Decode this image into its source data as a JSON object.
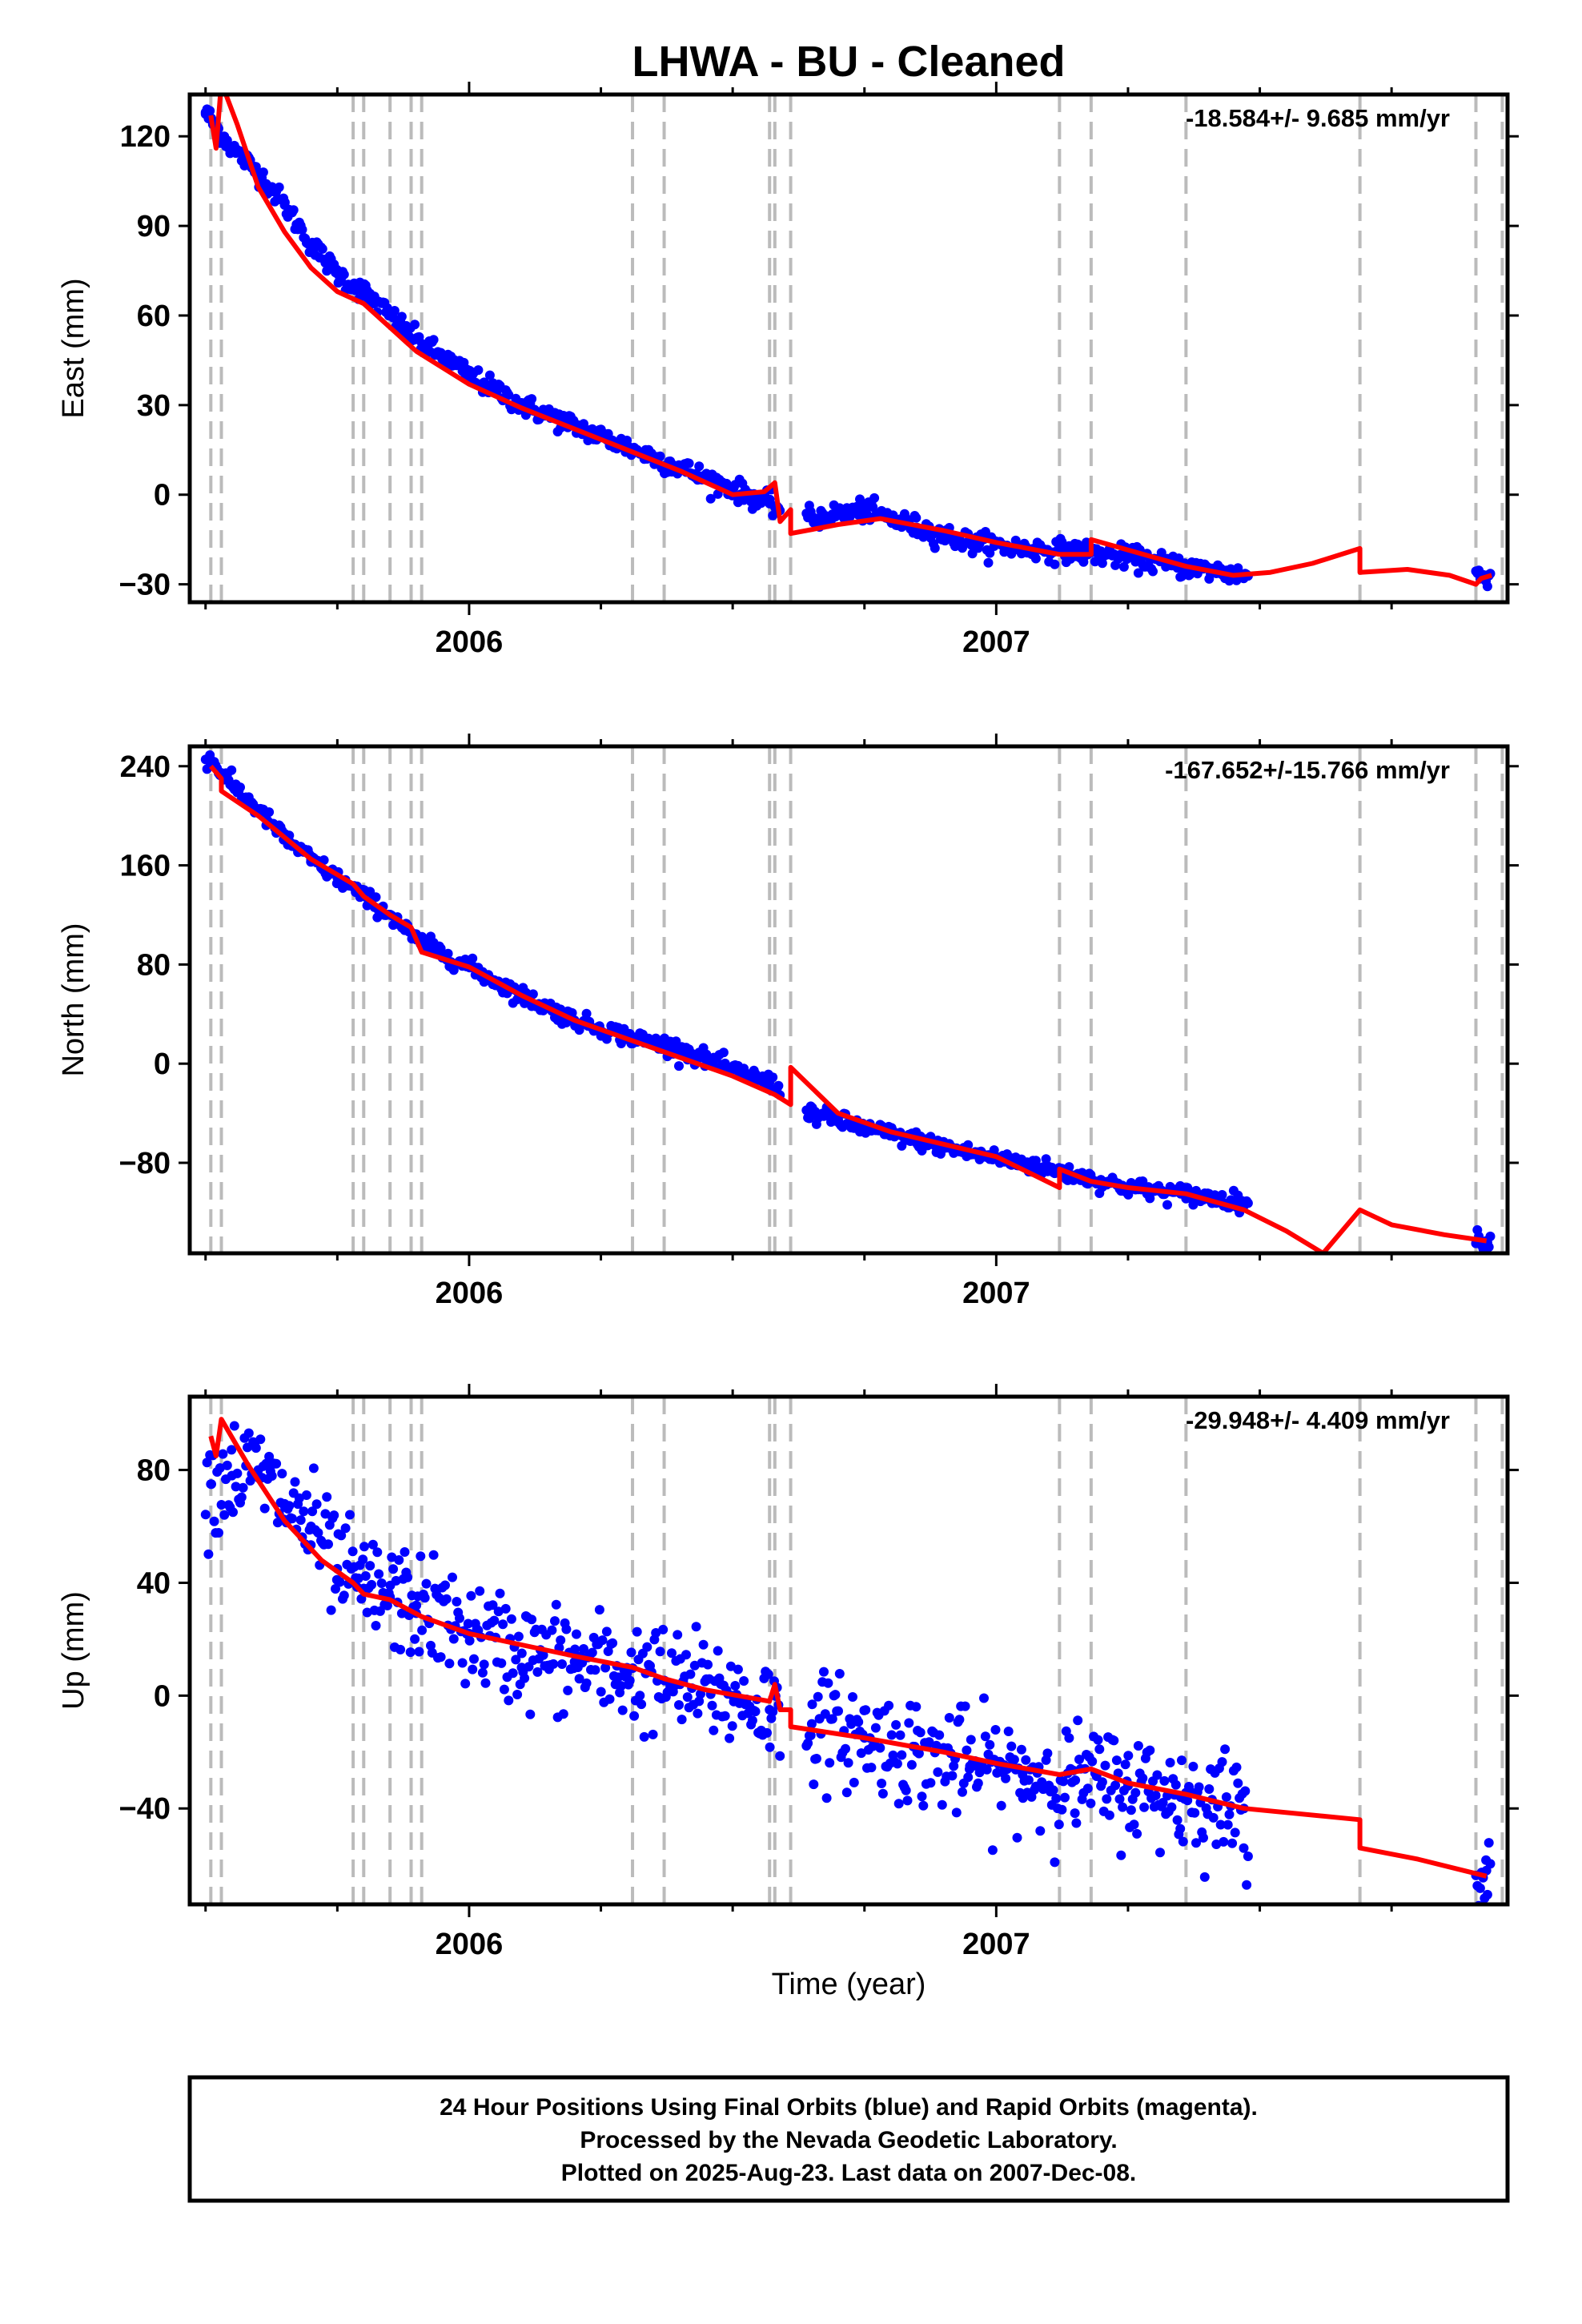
{
  "title": "LHWA  - BU - Cleaned",
  "xlabel": "Time (year)",
  "footer": {
    "line1": "24 Hour Positions Using Final Orbits (blue) and Rapid Orbits (magenta).",
    "line2": "Processed by the Nevada Geodetic Laboratory.",
    "line3": "Plotted on 2025-Aug-23. Last data on 2007-Dec-08."
  },
  "colors": {
    "points": "#0000ff",
    "model": "#ff0000",
    "steps": "#bbbbbb"
  },
  "chart_data": [
    {
      "type": "scatter",
      "ylabel": "East (mm)",
      "rate_label": "-18.584+/- 9.685 mm/yr",
      "xlim": [
        2005.47,
        2007.97
      ],
      "ylim": [
        -36,
        134
      ],
      "x_ticks": [
        2006,
        2007
      ],
      "y_ticks": [
        -30,
        0,
        30,
        60,
        90,
        120
      ],
      "step_epochs": [
        2005.51,
        2005.53,
        2005.78,
        2005.8,
        2005.85,
        2005.89,
        2005.91,
        2006.31,
        2006.37,
        2006.57,
        2006.58,
        2006.61,
        2007.12,
        2007.18,
        2007.36,
        2007.69,
        2007.91,
        2007.96
      ],
      "observed": [
        {
          "x": 2005.5,
          "y": 128
        },
        {
          "x": 2005.55,
          "y": 116
        },
        {
          "x": 2005.6,
          "y": 108
        },
        {
          "x": 2005.65,
          "y": 97
        },
        {
          "x": 2005.7,
          "y": 84
        },
        {
          "x": 2005.75,
          "y": 74
        },
        {
          "x": 2005.8,
          "y": 68
        },
        {
          "x": 2005.85,
          "y": 60
        },
        {
          "x": 2005.9,
          "y": 52
        },
        {
          "x": 2006.0,
          "y": 40
        },
        {
          "x": 2006.1,
          "y": 30
        },
        {
          "x": 2006.2,
          "y": 23
        },
        {
          "x": 2006.3,
          "y": 16
        },
        {
          "x": 2006.4,
          "y": 9
        },
        {
          "x": 2006.5,
          "y": 2
        },
        {
          "x": 2006.57,
          "y": -3
        },
        {
          "x": 2006.65,
          "y": -8
        },
        {
          "x": 2006.75,
          "y": -5
        },
        {
          "x": 2006.85,
          "y": -11
        },
        {
          "x": 2006.95,
          "y": -16
        },
        {
          "x": 2007.05,
          "y": -18
        },
        {
          "x": 2007.15,
          "y": -19
        },
        {
          "x": 2007.25,
          "y": -21
        },
        {
          "x": 2007.35,
          "y": -24
        },
        {
          "x": 2007.47,
          "y": -27
        },
        {
          "x": 2007.93,
          "y": -27
        }
      ],
      "model": [
        {
          "x": 2005.51,
          "y": 127
        },
        {
          "x": 2005.52,
          "y": 116
        },
        {
          "x": 2005.53,
          "y": 138
        },
        {
          "x": 2005.56,
          "y": 124
        },
        {
          "x": 2005.6,
          "y": 103
        },
        {
          "x": 2005.65,
          "y": 88
        },
        {
          "x": 2005.7,
          "y": 76
        },
        {
          "x": 2005.75,
          "y": 68
        },
        {
          "x": 2005.8,
          "y": 64
        },
        {
          "x": 2005.85,
          "y": 56
        },
        {
          "x": 2005.9,
          "y": 48
        },
        {
          "x": 2006.0,
          "y": 37
        },
        {
          "x": 2006.1,
          "y": 29
        },
        {
          "x": 2006.2,
          "y": 22
        },
        {
          "x": 2006.3,
          "y": 15
        },
        {
          "x": 2006.4,
          "y": 8
        },
        {
          "x": 2006.5,
          "y": 0
        },
        {
          "x": 2006.56,
          "y": 1
        },
        {
          "x": 2006.58,
          "y": 4
        },
        {
          "x": 2006.59,
          "y": -9
        },
        {
          "x": 2006.61,
          "y": -5
        },
        {
          "x": 2006.61,
          "y": -13
        },
        {
          "x": 2006.7,
          "y": -10
        },
        {
          "x": 2006.78,
          "y": -8
        },
        {
          "x": 2006.9,
          "y": -12
        },
        {
          "x": 2007.0,
          "y": -16
        },
        {
          "x": 2007.12,
          "y": -20
        },
        {
          "x": 2007.18,
          "y": -20
        },
        {
          "x": 2007.18,
          "y": -15
        },
        {
          "x": 2007.3,
          "y": -21
        },
        {
          "x": 2007.36,
          "y": -24
        },
        {
          "x": 2007.45,
          "y": -27
        },
        {
          "x": 2007.52,
          "y": -26
        },
        {
          "x": 2007.6,
          "y": -23
        },
        {
          "x": 2007.69,
          "y": -18
        },
        {
          "x": 2007.69,
          "y": -26
        },
        {
          "x": 2007.78,
          "y": -25
        },
        {
          "x": 2007.86,
          "y": -27
        },
        {
          "x": 2007.91,
          "y": -30
        },
        {
          "x": 2007.92,
          "y": -28
        },
        {
          "x": 2007.94,
          "y": -27
        }
      ]
    },
    {
      "type": "scatter",
      "ylabel": "North (mm)",
      "rate_label": "-167.652+/-15.766 mm/yr",
      "xlim": [
        2005.47,
        2007.97
      ],
      "ylim": [
        -153,
        256
      ],
      "x_ticks": [
        2006,
        2007
      ],
      "y_ticks": [
        -80,
        0,
        80,
        160,
        240
      ],
      "step_epochs": [
        2005.51,
        2005.53,
        2005.78,
        2005.8,
        2005.85,
        2005.89,
        2005.91,
        2006.31,
        2006.37,
        2006.57,
        2006.58,
        2006.61,
        2007.12,
        2007.18,
        2007.36,
        2007.69,
        2007.91,
        2007.96
      ],
      "observed": [
        {
          "x": 2005.51,
          "y": 245
        },
        {
          "x": 2005.55,
          "y": 225
        },
        {
          "x": 2005.6,
          "y": 205
        },
        {
          "x": 2005.65,
          "y": 182
        },
        {
          "x": 2005.7,
          "y": 165
        },
        {
          "x": 2005.75,
          "y": 150
        },
        {
          "x": 2005.8,
          "y": 135
        },
        {
          "x": 2005.85,
          "y": 120
        },
        {
          "x": 2005.9,
          "y": 100
        },
        {
          "x": 2006.0,
          "y": 78
        },
        {
          "x": 2006.1,
          "y": 55
        },
        {
          "x": 2006.2,
          "y": 35
        },
        {
          "x": 2006.3,
          "y": 22
        },
        {
          "x": 2006.4,
          "y": 12
        },
        {
          "x": 2006.5,
          "y": -5
        },
        {
          "x": 2006.57,
          "y": -15
        },
        {
          "x": 2006.65,
          "y": -40
        },
        {
          "x": 2006.75,
          "y": -52
        },
        {
          "x": 2006.85,
          "y": -62
        },
        {
          "x": 2006.95,
          "y": -72
        },
        {
          "x": 2007.05,
          "y": -80
        },
        {
          "x": 2007.15,
          "y": -90
        },
        {
          "x": 2007.25,
          "y": -100
        },
        {
          "x": 2007.35,
          "y": -105
        },
        {
          "x": 2007.47,
          "y": -112
        },
        {
          "x": 2007.93,
          "y": -143
        }
      ],
      "model": [
        {
          "x": 2005.51,
          "y": 240
        },
        {
          "x": 2005.53,
          "y": 230
        },
        {
          "x": 2005.53,
          "y": 220
        },
        {
          "x": 2005.6,
          "y": 200
        },
        {
          "x": 2005.7,
          "y": 165
        },
        {
          "x": 2005.78,
          "y": 145
        },
        {
          "x": 2005.8,
          "y": 135
        },
        {
          "x": 2005.85,
          "y": 120
        },
        {
          "x": 2005.89,
          "y": 110
        },
        {
          "x": 2005.91,
          "y": 90
        },
        {
          "x": 2006.0,
          "y": 78
        },
        {
          "x": 2006.1,
          "y": 55
        },
        {
          "x": 2006.2,
          "y": 35
        },
        {
          "x": 2006.3,
          "y": 20
        },
        {
          "x": 2006.4,
          "y": 5
        },
        {
          "x": 2006.5,
          "y": -10
        },
        {
          "x": 2006.58,
          "y": -25
        },
        {
          "x": 2006.61,
          "y": -33
        },
        {
          "x": 2006.61,
          "y": -3
        },
        {
          "x": 2006.7,
          "y": -40
        },
        {
          "x": 2006.8,
          "y": -55
        },
        {
          "x": 2006.9,
          "y": -65
        },
        {
          "x": 2007.0,
          "y": -75
        },
        {
          "x": 2007.12,
          "y": -100
        },
        {
          "x": 2007.12,
          "y": -85
        },
        {
          "x": 2007.18,
          "y": -95
        },
        {
          "x": 2007.25,
          "y": -100
        },
        {
          "x": 2007.36,
          "y": -105
        },
        {
          "x": 2007.47,
          "y": -118
        },
        {
          "x": 2007.55,
          "y": -135
        },
        {
          "x": 2007.62,
          "y": -153
        },
        {
          "x": 2007.69,
          "y": -118
        },
        {
          "x": 2007.75,
          "y": -130
        },
        {
          "x": 2007.85,
          "y": -138
        },
        {
          "x": 2007.93,
          "y": -143
        }
      ]
    },
    {
      "type": "scatter",
      "ylabel": "Up (mm)",
      "rate_label": "-29.948+/- 4.409 mm/yr",
      "xlim": [
        2005.47,
        2007.97
      ],
      "ylim": [
        -74,
        106
      ],
      "x_ticks": [
        2006,
        2007
      ],
      "y_ticks": [
        -40,
        0,
        40,
        80
      ],
      "step_epochs": [
        2005.51,
        2005.53,
        2005.78,
        2005.8,
        2005.85,
        2005.89,
        2005.91,
        2006.31,
        2006.37,
        2006.57,
        2006.58,
        2006.61,
        2007.12,
        2007.18,
        2007.36,
        2007.69,
        2007.91,
        2007.96
      ],
      "observed": [
        {
          "x": 2005.51,
          "y": 75
        },
        {
          "x": 2005.55,
          "y": 78
        },
        {
          "x": 2005.6,
          "y": 80
        },
        {
          "x": 2005.65,
          "y": 68
        },
        {
          "x": 2005.7,
          "y": 60
        },
        {
          "x": 2005.75,
          "y": 45
        },
        {
          "x": 2005.8,
          "y": 38
        },
        {
          "x": 2005.85,
          "y": 35
        },
        {
          "x": 2005.9,
          "y": 32
        },
        {
          "x": 2006.0,
          "y": 22
        },
        {
          "x": 2006.1,
          "y": 15
        },
        {
          "x": 2006.2,
          "y": 12
        },
        {
          "x": 2006.3,
          "y": 8
        },
        {
          "x": 2006.4,
          "y": 4
        },
        {
          "x": 2006.5,
          "y": 0
        },
        {
          "x": 2006.57,
          "y": -5
        },
        {
          "x": 2006.65,
          "y": -10
        },
        {
          "x": 2006.75,
          "y": -15
        },
        {
          "x": 2006.85,
          "y": -20
        },
        {
          "x": 2006.95,
          "y": -25
        },
        {
          "x": 2007.05,
          "y": -28
        },
        {
          "x": 2007.15,
          "y": -30
        },
        {
          "x": 2007.25,
          "y": -32
        },
        {
          "x": 2007.35,
          "y": -36
        },
        {
          "x": 2007.47,
          "y": -40
        },
        {
          "x": 2007.93,
          "y": -62
        }
      ],
      "model": [
        {
          "x": 2005.51,
          "y": 92
        },
        {
          "x": 2005.52,
          "y": 85
        },
        {
          "x": 2005.53,
          "y": 98
        },
        {
          "x": 2005.58,
          "y": 82
        },
        {
          "x": 2005.65,
          "y": 62
        },
        {
          "x": 2005.72,
          "y": 48
        },
        {
          "x": 2005.78,
          "y": 40
        },
        {
          "x": 2005.8,
          "y": 36
        },
        {
          "x": 2005.85,
          "y": 34
        },
        {
          "x": 2005.89,
          "y": 30
        },
        {
          "x": 2005.91,
          "y": 28
        },
        {
          "x": 2006.0,
          "y": 22
        },
        {
          "x": 2006.1,
          "y": 18
        },
        {
          "x": 2006.2,
          "y": 14
        },
        {
          "x": 2006.31,
          "y": 10
        },
        {
          "x": 2006.37,
          "y": 6
        },
        {
          "x": 2006.45,
          "y": 2
        },
        {
          "x": 2006.57,
          "y": -2
        },
        {
          "x": 2006.58,
          "y": 4
        },
        {
          "x": 2006.59,
          "y": -5
        },
        {
          "x": 2006.61,
          "y": -5
        },
        {
          "x": 2006.61,
          "y": -11
        },
        {
          "x": 2006.75,
          "y": -15
        },
        {
          "x": 2006.9,
          "y": -20
        },
        {
          "x": 2007.0,
          "y": -24
        },
        {
          "x": 2007.12,
          "y": -28
        },
        {
          "x": 2007.18,
          "y": -26
        },
        {
          "x": 2007.25,
          "y": -31
        },
        {
          "x": 2007.36,
          "y": -35
        },
        {
          "x": 2007.47,
          "y": -40
        },
        {
          "x": 2007.69,
          "y": -44
        },
        {
          "x": 2007.69,
          "y": -54
        },
        {
          "x": 2007.8,
          "y": -58
        },
        {
          "x": 2007.93,
          "y": -64
        }
      ]
    }
  ]
}
